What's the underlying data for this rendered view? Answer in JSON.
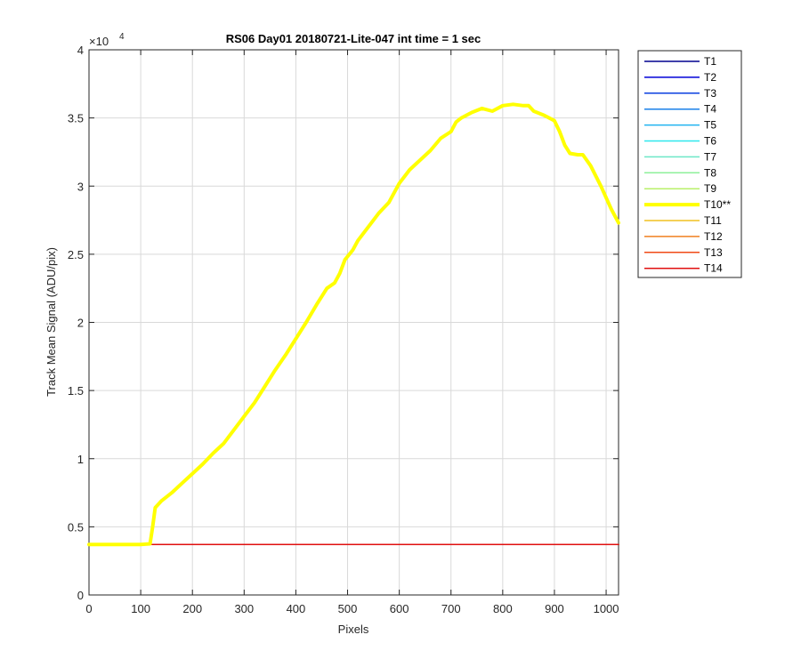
{
  "chart_data": {
    "type": "line",
    "title": "RS06 Day01 20180721-Lite-047 int time = 1 sec",
    "xlabel": "Pixels",
    "ylabel": "Track Mean Signal (ADU/pix)",
    "y_exponent_label": "×10",
    "y_exponent_power": "4",
    "xlim": [
      0,
      1024
    ],
    "ylim": [
      0,
      40000
    ],
    "xticks": [
      0,
      100,
      200,
      300,
      400,
      500,
      600,
      700,
      800,
      900,
      1000
    ],
    "yticks": [
      0,
      5000,
      10000,
      15000,
      20000,
      25000,
      30000,
      35000,
      40000
    ],
    "xtick_labels": [
      "0",
      "100",
      "200",
      "300",
      "400",
      "500",
      "600",
      "700",
      "800",
      "900",
      "1000"
    ],
    "ytick_labels": [
      "0",
      "0.5",
      "1",
      "1.5",
      "2",
      "2.5",
      "3",
      "3.5",
      "4"
    ],
    "grid": true,
    "legend_position": "outside-right-top",
    "series": [
      {
        "name": "T1",
        "color": "#00008f",
        "values": [
          [
            0,
            3700
          ],
          [
            1024,
            3700
          ]
        ]
      },
      {
        "name": "T2",
        "color": "#0000d8",
        "values": [
          [
            0,
            3700
          ],
          [
            1024,
            3700
          ]
        ]
      },
      {
        "name": "T3",
        "color": "#0a3fe0",
        "values": [
          [
            0,
            3700
          ],
          [
            1024,
            3700
          ]
        ]
      },
      {
        "name": "T4",
        "color": "#1a80e8",
        "values": [
          [
            0,
            3700
          ],
          [
            1024,
            3700
          ]
        ]
      },
      {
        "name": "T5",
        "color": "#21b4f0",
        "values": [
          [
            0,
            3700
          ],
          [
            1024,
            3700
          ]
        ]
      },
      {
        "name": "T6",
        "color": "#2ee8ee",
        "values": [
          [
            0,
            3700
          ],
          [
            1024,
            3700
          ]
        ]
      },
      {
        "name": "T7",
        "color": "#6de8c8",
        "values": [
          [
            0,
            3700
          ],
          [
            1024,
            3700
          ]
        ]
      },
      {
        "name": "T8",
        "color": "#8ef09a",
        "values": [
          [
            0,
            3700
          ],
          [
            1024,
            3700
          ]
        ]
      },
      {
        "name": "T9",
        "color": "#b8f06a",
        "values": [
          [
            0,
            3700
          ],
          [
            1024,
            3700
          ]
        ]
      },
      {
        "name": "T10**",
        "color": "#ffff00",
        "bold": true,
        "values": [
          [
            0,
            3700
          ],
          [
            50,
            3700
          ],
          [
            100,
            3700
          ],
          [
            118,
            3750
          ],
          [
            123,
            5000
          ],
          [
            128,
            6400
          ],
          [
            140,
            6900
          ],
          [
            160,
            7500
          ],
          [
            180,
            8200
          ],
          [
            200,
            8900
          ],
          [
            220,
            9600
          ],
          [
            240,
            10400
          ],
          [
            260,
            11100
          ],
          [
            280,
            12100
          ],
          [
            300,
            13100
          ],
          [
            320,
            14100
          ],
          [
            340,
            15300
          ],
          [
            360,
            16500
          ],
          [
            380,
            17600
          ],
          [
            400,
            18800
          ],
          [
            420,
            20000
          ],
          [
            440,
            21300
          ],
          [
            460,
            22500
          ],
          [
            475,
            22900
          ],
          [
            485,
            23600
          ],
          [
            495,
            24600
          ],
          [
            510,
            25300
          ],
          [
            520,
            26000
          ],
          [
            540,
            27000
          ],
          [
            560,
            28000
          ],
          [
            580,
            28800
          ],
          [
            600,
            30200
          ],
          [
            620,
            31200
          ],
          [
            640,
            31900
          ],
          [
            660,
            32600
          ],
          [
            680,
            33500
          ],
          [
            700,
            34000
          ],
          [
            710,
            34700
          ],
          [
            720,
            35000
          ],
          [
            740,
            35400
          ],
          [
            760,
            35700
          ],
          [
            780,
            35500
          ],
          [
            800,
            35900
          ],
          [
            820,
            36000
          ],
          [
            840,
            35900
          ],
          [
            850,
            35900
          ],
          [
            860,
            35500
          ],
          [
            880,
            35200
          ],
          [
            900,
            34800
          ],
          [
            910,
            34000
          ],
          [
            920,
            33000
          ],
          [
            930,
            32400
          ],
          [
            945,
            32300
          ],
          [
            955,
            32300
          ],
          [
            970,
            31500
          ],
          [
            990,
            30000
          ],
          [
            1010,
            28300
          ],
          [
            1024,
            27300
          ]
        ]
      },
      {
        "name": "T11",
        "color": "#f0c020",
        "values": [
          [
            0,
            3700
          ],
          [
            1024,
            3700
          ]
        ]
      },
      {
        "name": "T12",
        "color": "#f08020",
        "values": [
          [
            0,
            3700
          ],
          [
            1024,
            3700
          ]
        ]
      },
      {
        "name": "T13",
        "color": "#f04a16",
        "values": [
          [
            0,
            3700
          ],
          [
            1024,
            3700
          ]
        ]
      },
      {
        "name": "T14",
        "color": "#e01010",
        "values": [
          [
            0,
            3700
          ],
          [
            1024,
            3700
          ]
        ]
      }
    ]
  }
}
